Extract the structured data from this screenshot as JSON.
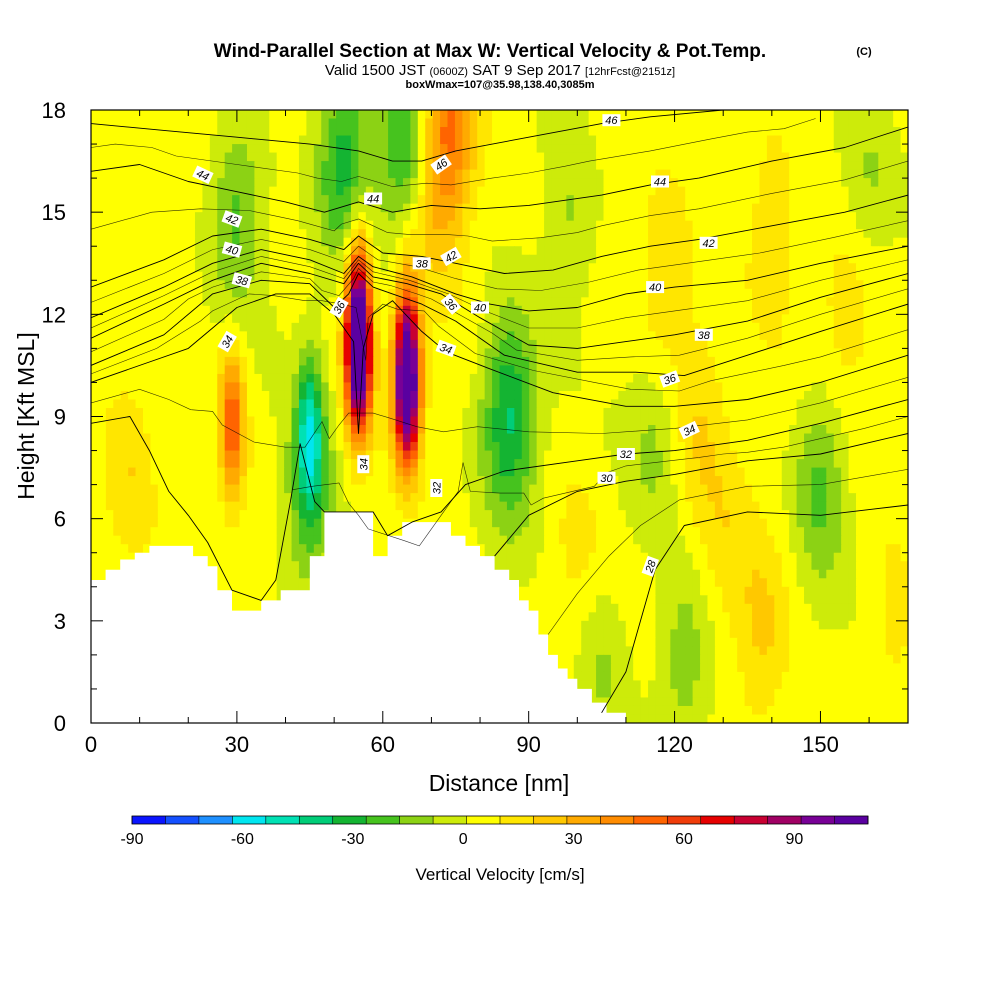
{
  "chart_data": {
    "type": "heatmap",
    "title": "Wind-Parallel Section at Max W: Vertical Velocity & Pot.Temp.",
    "title_mark": "(C)",
    "subtitle": {
      "prefix": "Valid 1500 JST",
      "utc": "(0600Z)",
      "date": "SAT 9 Sep 2017",
      "run": "[12hrFcst@2151z]"
    },
    "subsubtitle": "boxWmax=107@35.98,138.40,3085m",
    "xlabel": "Distance [nm]",
    "ylabel": "Height [Kft MSL]",
    "xlim": [
      0,
      168
    ],
    "ylim": [
      0,
      18
    ],
    "x_ticks": [
      0,
      30,
      60,
      90,
      120,
      150
    ],
    "y_ticks": [
      0,
      3,
      6,
      9,
      12,
      15,
      18
    ],
    "grid": false,
    "colorbar": {
      "label": "Vertical Velocity [cm/s]",
      "range": [
        -90,
        110
      ],
      "tick_values": [
        -90,
        -60,
        -30,
        0,
        30,
        60,
        90
      ],
      "colors": [
        "#0a14ff",
        "#1450ff",
        "#1e90ff",
        "#00e6f0",
        "#00e1b4",
        "#00cd78",
        "#14b432",
        "#46c31e",
        "#8cd214",
        "#cdeb0a",
        "#ffff00",
        "#ffe600",
        "#ffc800",
        "#ffaa00",
        "#ff8c00",
        "#ff6400",
        "#f03c0a",
        "#e60000",
        "#c80032",
        "#a00064",
        "#780096",
        "#5a00a0"
      ]
    },
    "vertical_velocity_features": [
      {
        "x": 29,
        "y": 8.8,
        "w": 50
      },
      {
        "x": 55,
        "y": 10.6,
        "w": 107
      },
      {
        "x": 55,
        "y": 12.5,
        "w": 60
      },
      {
        "x": 65,
        "y": 9.6,
        "w": 95
      },
      {
        "x": 65,
        "y": 11.2,
        "w": 55
      },
      {
        "x": 45,
        "y": 8.6,
        "w": -45
      },
      {
        "x": 45,
        "y": 6.6,
        "w": -28
      },
      {
        "x": 52,
        "y": 16.5,
        "w": -35
      },
      {
        "x": 65,
        "y": 16.8,
        "w": -35
      },
      {
        "x": 74,
        "y": 17.6,
        "w": 40
      },
      {
        "x": 70,
        "y": 15.5,
        "w": 25
      },
      {
        "x": 86,
        "y": 9.6,
        "w": -30
      },
      {
        "x": 30,
        "y": 15.0,
        "w": -25
      },
      {
        "x": 8,
        "y": 7.5,
        "w": 15
      },
      {
        "x": 150,
        "y": 7.0,
        "w": -25
      },
      {
        "x": 116,
        "y": 8.3,
        "w": -15
      },
      {
        "x": 125,
        "y": 9.0,
        "w": 15
      },
      {
        "x": 98,
        "y": 14.5,
        "w": -15
      },
      {
        "x": 118,
        "y": 12.5,
        "w": 15
      },
      {
        "x": 140,
        "y": 14.0,
        "w": 15
      },
      {
        "x": 155,
        "y": 12.0,
        "w": 12
      },
      {
        "x": 160,
        "y": 16.0,
        "w": -10
      },
      {
        "x": 138,
        "y": 2.5,
        "w": 18
      },
      {
        "x": 122,
        "y": 2.0,
        "w": -18
      },
      {
        "x": 105,
        "y": 1.6,
        "w": -14
      },
      {
        "x": 86,
        "y": 8.0,
        "w": -15
      },
      {
        "x": 130,
        "y": 5.5,
        "w": 10
      },
      {
        "x": 100,
        "y": 5.0,
        "w": 10
      },
      {
        "x": 165,
        "y": 3.0,
        "w": 10
      }
    ],
    "terrain": [
      [
        0,
        4.2
      ],
      [
        3,
        4.2
      ],
      [
        3,
        4.5
      ],
      [
        6,
        4.5
      ],
      [
        6,
        4.8
      ],
      [
        9,
        4.8
      ],
      [
        9,
        5.0
      ],
      [
        12,
        5.0
      ],
      [
        12,
        5.2
      ],
      [
        21,
        5.2
      ],
      [
        21,
        4.9
      ],
      [
        24,
        4.9
      ],
      [
        24,
        4.6
      ],
      [
        26,
        4.6
      ],
      [
        26,
        3.9
      ],
      [
        29,
        3.9
      ],
      [
        29,
        3.3
      ],
      [
        35,
        3.3
      ],
      [
        35,
        3.6
      ],
      [
        39,
        3.6
      ],
      [
        39,
        3.9
      ],
      [
        45,
        3.9
      ],
      [
        45,
        4.9
      ],
      [
        48,
        4.9
      ],
      [
        48,
        6.2
      ],
      [
        58,
        6.2
      ],
      [
        58,
        4.9
      ],
      [
        61,
        4.9
      ],
      [
        61,
        5.5
      ],
      [
        64,
        5.5
      ],
      [
        64,
        5.9
      ],
      [
        74,
        5.9
      ],
      [
        74,
        5.5
      ],
      [
        77,
        5.5
      ],
      [
        77,
        5.2
      ],
      [
        80,
        5.2
      ],
      [
        80,
        4.9
      ],
      [
        83,
        4.9
      ],
      [
        83,
        4.5
      ],
      [
        86,
        4.5
      ],
      [
        86,
        4.2
      ],
      [
        88,
        4.2
      ],
      [
        88,
        3.6
      ],
      [
        90,
        3.6
      ],
      [
        90,
        3.3
      ],
      [
        92,
        3.3
      ],
      [
        92,
        2.6
      ],
      [
        94,
        2.6
      ],
      [
        94,
        2.0
      ],
      [
        96,
        2.0
      ],
      [
        96,
        1.6
      ],
      [
        98,
        1.6
      ],
      [
        98,
        1.3
      ],
      [
        100,
        1.3
      ],
      [
        100,
        1.0
      ],
      [
        103,
        1.0
      ],
      [
        103,
        0.6
      ],
      [
        106,
        0.6
      ],
      [
        106,
        0.3
      ],
      [
        110,
        0.3
      ],
      [
        110,
        0
      ]
    ],
    "theta_contours": [
      {
        "label": "28",
        "pts": [
          [
            105,
            0.3
          ],
          [
            110,
            1.5
          ],
          [
            113,
            3.0
          ],
          [
            116,
            4.5
          ],
          [
            122,
            5.8
          ],
          [
            135,
            6.2
          ],
          [
            150,
            6.1
          ],
          [
            168,
            6.4
          ]
        ]
      },
      {
        "label": "30",
        "pts": [
          [
            83,
            4.9
          ],
          [
            90,
            6.1
          ],
          [
            100,
            6.8
          ],
          [
            110,
            7.1
          ],
          [
            120,
            7.3
          ],
          [
            135,
            7.7
          ],
          [
            150,
            7.9
          ],
          [
            168,
            8.5
          ]
        ]
      },
      {
        "label": "32",
        "pts": [
          [
            0,
            8.8
          ],
          [
            8,
            9.0
          ],
          [
            12,
            8.0
          ],
          [
            16,
            6.8
          ],
          [
            20,
            6.1
          ],
          [
            24,
            5.3
          ],
          [
            29,
            3.9
          ],
          [
            35,
            3.6
          ],
          [
            38,
            4.2
          ],
          [
            41,
            6.5
          ],
          [
            43,
            8.2
          ],
          [
            46,
            6.5
          ],
          [
            48,
            6.2
          ],
          [
            58,
            6.2
          ],
          [
            61,
            5.5
          ],
          [
            66,
            5.9
          ],
          [
            72,
            6.2
          ],
          [
            77,
            7.0
          ],
          [
            85,
            7.4
          ],
          [
            100,
            7.7
          ],
          [
            110,
            7.9
          ],
          [
            120,
            8.0
          ],
          [
            135,
            8.3
          ],
          [
            150,
            8.8
          ],
          [
            168,
            9.5
          ]
        ]
      },
      {
        "label": "34",
        "pts": [
          [
            0,
            10.0
          ],
          [
            12,
            10.6
          ],
          [
            20,
            11.0
          ],
          [
            25,
            11.6
          ],
          [
            30,
            12.2
          ],
          [
            38,
            12.6
          ],
          [
            45,
            12.6
          ],
          [
            50,
            12.0
          ],
          [
            54,
            11.2
          ],
          [
            55,
            8.5
          ],
          [
            56,
            11.0
          ],
          [
            58,
            12.0
          ],
          [
            62,
            12.4
          ],
          [
            68,
            11.5
          ],
          [
            73,
            10.9
          ],
          [
            82,
            10.4
          ],
          [
            95,
            9.7
          ],
          [
            110,
            9.3
          ],
          [
            120,
            9.3
          ],
          [
            135,
            9.5
          ],
          [
            150,
            10.0
          ],
          [
            168,
            10.8
          ]
        ]
      },
      {
        "label": "36",
        "pts": [
          [
            0,
            10.5
          ],
          [
            15,
            11.4
          ],
          [
            25,
            12.6
          ],
          [
            35,
            13.0
          ],
          [
            45,
            12.9
          ],
          [
            50,
            12.2
          ],
          [
            53,
            12.6
          ],
          [
            55,
            13.2
          ],
          [
            58,
            12.8
          ],
          [
            62,
            12.6
          ],
          [
            68,
            12.3
          ],
          [
            75,
            11.8
          ],
          [
            85,
            10.8
          ],
          [
            100,
            10.3
          ],
          [
            112,
            10.3
          ],
          [
            122,
            10.2
          ],
          [
            135,
            10.8
          ],
          [
            150,
            11.5
          ],
          [
            168,
            12.3
          ]
        ]
      },
      {
        "label": "38",
        "pts": [
          [
            0,
            11.3
          ],
          [
            15,
            12.3
          ],
          [
            25,
            13.0
          ],
          [
            35,
            13.5
          ],
          [
            45,
            13.2
          ],
          [
            52,
            12.9
          ],
          [
            55,
            13.5
          ],
          [
            58,
            13.1
          ],
          [
            65,
            12.9
          ],
          [
            72,
            12.6
          ],
          [
            80,
            11.9
          ],
          [
            90,
            11.1
          ],
          [
            100,
            11.0
          ],
          [
            110,
            11.2
          ],
          [
            120,
            11.4
          ],
          [
            135,
            11.8
          ],
          [
            150,
            12.5
          ],
          [
            168,
            13.2
          ]
        ]
      },
      {
        "label": "40",
        "pts": [
          [
            0,
            11.9
          ],
          [
            15,
            12.8
          ],
          [
            25,
            13.5
          ],
          [
            35,
            13.9
          ],
          [
            45,
            13.6
          ],
          [
            52,
            13.2
          ],
          [
            55,
            13.7
          ],
          [
            58,
            13.4
          ],
          [
            66,
            13.1
          ],
          [
            75,
            12.6
          ],
          [
            82,
            12.3
          ],
          [
            90,
            12.1
          ],
          [
            100,
            12.2
          ],
          [
            110,
            12.6
          ],
          [
            120,
            12.8
          ],
          [
            135,
            13.0
          ],
          [
            150,
            13.5
          ],
          [
            168,
            14.0
          ]
        ]
      },
      {
        "label": "42",
        "pts": [
          [
            0,
            12.8
          ],
          [
            15,
            13.6
          ],
          [
            25,
            14.3
          ],
          [
            35,
            14.5
          ],
          [
            45,
            14.2
          ],
          [
            52,
            13.9
          ],
          [
            55,
            14.3
          ],
          [
            60,
            13.8
          ],
          [
            68,
            13.7
          ],
          [
            75,
            13.5
          ],
          [
            85,
            13.2
          ],
          [
            95,
            13.3
          ],
          [
            105,
            13.7
          ],
          [
            115,
            14.0
          ],
          [
            125,
            14.2
          ],
          [
            140,
            14.6
          ],
          [
            155,
            15.0
          ],
          [
            168,
            15.5
          ]
        ]
      },
      {
        "label": "44",
        "pts": [
          [
            0,
            16.2
          ],
          [
            10,
            16.4
          ],
          [
            20,
            15.9
          ],
          [
            30,
            15.6
          ],
          [
            40,
            15.3
          ],
          [
            48,
            15.0
          ],
          [
            55,
            15.3
          ],
          [
            62,
            15.0
          ],
          [
            70,
            15.2
          ],
          [
            80,
            15.1
          ],
          [
            90,
            15.2
          ],
          [
            105,
            15.5
          ],
          [
            115,
            15.8
          ],
          [
            125,
            16.0
          ],
          [
            140,
            16.5
          ],
          [
            155,
            16.9
          ],
          [
            168,
            17.5
          ]
        ]
      },
      {
        "label": "46",
        "pts": [
          [
            0,
            17.6
          ],
          [
            15,
            17.4
          ],
          [
            30,
            17.2
          ],
          [
            45,
            17.0
          ],
          [
            55,
            16.8
          ],
          [
            62,
            16.5
          ],
          [
            68,
            16.5
          ],
          [
            75,
            16.8
          ],
          [
            90,
            17.2
          ],
          [
            105,
            17.6
          ],
          [
            115,
            17.8
          ],
          [
            130,
            18.0
          ]
        ]
      }
    ],
    "theta_labels": [
      {
        "text": "46",
        "x": 107,
        "y": 17.7,
        "rot": 0
      },
      {
        "text": "46",
        "x": 72,
        "y": 16.4,
        "rot": -35
      },
      {
        "text": "44",
        "x": 23,
        "y": 16.1,
        "rot": 25
      },
      {
        "text": "44",
        "x": 58,
        "y": 15.4,
        "rot": 0
      },
      {
        "text": "44",
        "x": 117,
        "y": 15.9,
        "rot": 0
      },
      {
        "text": "42",
        "x": 29,
        "y": 14.8,
        "rot": 20
      },
      {
        "text": "42",
        "x": 74,
        "y": 13.7,
        "rot": -30
      },
      {
        "text": "42",
        "x": 127,
        "y": 14.1,
        "rot": 0
      },
      {
        "text": "40",
        "x": 29,
        "y": 13.9,
        "rot": 15
      },
      {
        "text": "40",
        "x": 80,
        "y": 12.2,
        "rot": 0
      },
      {
        "text": "40",
        "x": 116,
        "y": 12.8,
        "rot": 0
      },
      {
        "text": "38",
        "x": 31,
        "y": 13.0,
        "rot": 15
      },
      {
        "text": "38",
        "x": 68,
        "y": 13.5,
        "rot": 0
      },
      {
        "text": "38",
        "x": 126,
        "y": 11.4,
        "rot": 0
      },
      {
        "text": "36",
        "x": 51,
        "y": 12.2,
        "rot": -60
      },
      {
        "text": "36",
        "x": 74,
        "y": 12.3,
        "rot": 50
      },
      {
        "text": "36",
        "x": 119,
        "y": 10.1,
        "rot": -20
      },
      {
        "text": "34",
        "x": 28,
        "y": 11.2,
        "rot": -60
      },
      {
        "text": "34",
        "x": 56,
        "y": 7.6,
        "rot": -90
      },
      {
        "text": "34",
        "x": 73,
        "y": 11.0,
        "rot": 20
      },
      {
        "text": "34",
        "x": 123,
        "y": 8.6,
        "rot": -25
      },
      {
        "text": "32",
        "x": 71,
        "y": 6.9,
        "rot": -90
      },
      {
        "text": "32",
        "x": 110,
        "y": 7.9,
        "rot": 0
      },
      {
        "text": "30",
        "x": 106,
        "y": 7.2,
        "rot": 0
      },
      {
        "text": "28",
        "x": 115,
        "y": 4.6,
        "rot": -70
      }
    ]
  }
}
